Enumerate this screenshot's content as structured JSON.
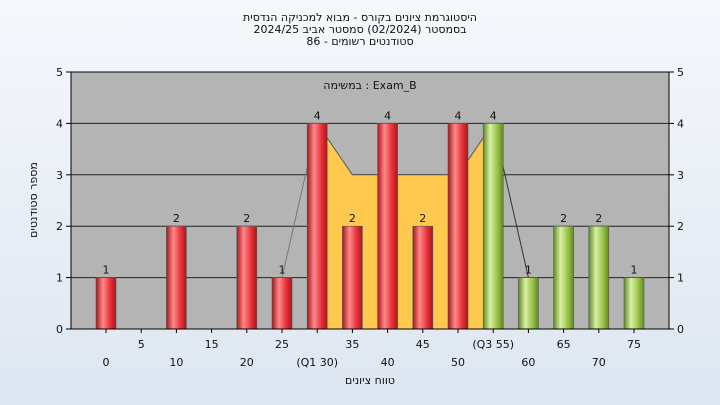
{
  "chart_data": {
    "type": "bar",
    "title_lines": [
      "היסטוגרמת ציונים בקורס - מבוא למכניקה הנדסית",
      "בסמסטר  (02/2024)  סמסטר אביב 2024/25",
      "סטודנטים רשומים - 86"
    ],
    "legend_note": "במשימה : Exam_B",
    "ylabel": "מספר סטודנטים",
    "xlabel": "טווח ציונים",
    "ylim": [
      0,
      5
    ],
    "yticks": [
      0,
      1,
      2,
      3,
      4,
      5
    ],
    "x_tick_labels": [
      "0",
      "5",
      "10",
      "15",
      "20",
      "25",
      "(Q1 30)",
      "35",
      "40",
      "45",
      "50",
      "(Q3 55)",
      "60",
      "65",
      "70",
      "75"
    ],
    "bins": [
      0,
      5,
      10,
      15,
      20,
      25,
      30,
      35,
      40,
      45,
      50,
      55,
      60,
      65,
      70,
      75
    ],
    "values": [
      1,
      0,
      2,
      0,
      2,
      1,
      4,
      2,
      4,
      2,
      4,
      4,
      1,
      2,
      2,
      1
    ],
    "bar_colors": [
      "red",
      "red",
      "red",
      "red",
      "red",
      "red",
      "red",
      "red",
      "red",
      "red",
      "red",
      "green",
      "green",
      "green",
      "green",
      "green"
    ],
    "iqr_band": {
      "from": 30,
      "to": 55,
      "upper": [
        4,
        3,
        3,
        3,
        3,
        4
      ]
    },
    "grid": true,
    "colors": {
      "plot_bg": "#b4b4b4",
      "red": "#e8333a",
      "green": "#9cc44a",
      "band": "#ffc94f",
      "grid": "#222222"
    }
  }
}
